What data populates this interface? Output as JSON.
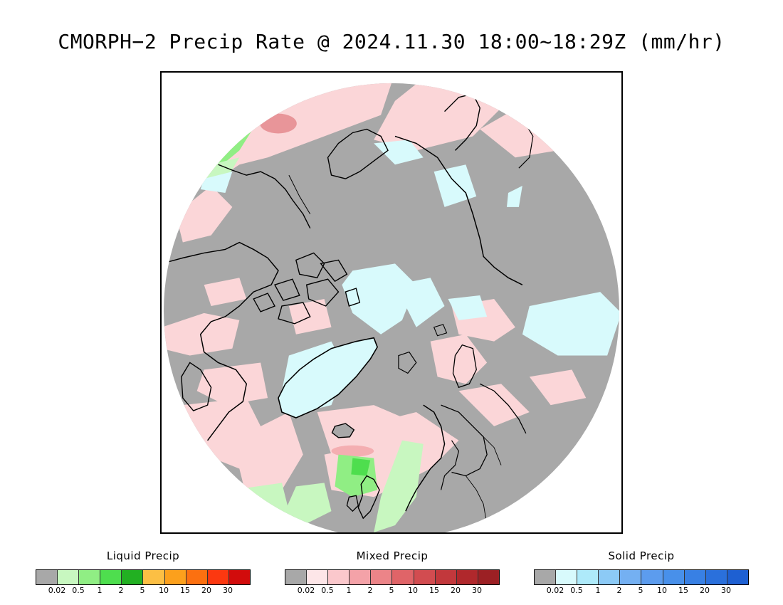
{
  "title": "CMORPH−2 Precip Rate @ 2024.11.30 18:00~18:29Z (mm/hr)",
  "map": {
    "projection": "north-polar-stereographic",
    "background_color": "#a8a8a8",
    "coast_color": "#000000"
  },
  "legends": [
    {
      "title": "Liquid Precip",
      "colors": [
        "#a8a8a8",
        "#c8f7c0",
        "#90ee84",
        "#4ede4e",
        "#22b022",
        "#fcbf44",
        "#fca01c",
        "#fc7010",
        "#fc3810",
        "#d20c0c"
      ],
      "ticks": [
        "0.02",
        "0.5",
        "1",
        "2",
        "5",
        "10",
        "15",
        "20",
        "30"
      ]
    },
    {
      "title": "Mixed Precip",
      "colors": [
        "#a8a8a8",
        "#fde6e8",
        "#fbc8cc",
        "#f4a2a8",
        "#ec8488",
        "#e06468",
        "#d24c50",
        "#c2383c",
        "#b0282c",
        "#9c2024"
      ],
      "ticks": [
        "0.02",
        "0.5",
        "1",
        "2",
        "5",
        "10",
        "15",
        "20",
        "30"
      ]
    },
    {
      "title": "Solid Precip",
      "colors": [
        "#a8a8a8",
        "#d8fafc",
        "#aeeafa",
        "#8ccaf6",
        "#74b0f2",
        "#5c9cee",
        "#4890ea",
        "#3880e4",
        "#2a70dc",
        "#1e60d2"
      ],
      "ticks": [
        "0.02",
        "0.5",
        "1",
        "2",
        "5",
        "10",
        "15",
        "20",
        "30"
      ]
    }
  ]
}
